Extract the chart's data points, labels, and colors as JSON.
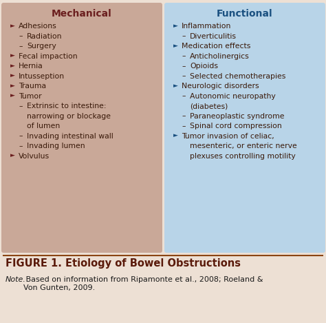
{
  "bg_color": "#ede0d4",
  "left_panel_color": "#c9a898",
  "right_panel_color": "#b8d4e8",
  "left_title": "Mechanical",
  "right_title": "Functional",
  "left_title_color": "#6b1f1f",
  "right_title_color": "#1a5080",
  "text_color": "#3a1a0a",
  "figure_title": "FIGURE 1. Etiology of Bowel Obstructions",
  "figure_note_italic": "Note.",
  "figure_note_regular": " Based on information from Ripamonte et al., 2008; Roeland &\nVon Gunten, 2009.",
  "bullet": "►",
  "dash": "–",
  "left_items": [
    {
      "type": "bullet",
      "text": "Adhesions",
      "extra": []
    },
    {
      "type": "dash",
      "text": "Radiation",
      "extra": []
    },
    {
      "type": "dash",
      "text": "Surgery",
      "extra": []
    },
    {
      "type": "bullet",
      "text": "Fecal impaction",
      "extra": []
    },
    {
      "type": "bullet",
      "text": "Hernia",
      "extra": []
    },
    {
      "type": "bullet",
      "text": "Intusseption",
      "extra": []
    },
    {
      "type": "bullet",
      "text": "Trauma",
      "extra": []
    },
    {
      "type": "bullet",
      "text": "Tumor",
      "extra": []
    },
    {
      "type": "dash",
      "text": "Extrinsic to intestine:",
      "extra": [
        "narrowing or blockage",
        "of lumen"
      ]
    },
    {
      "type": "dash",
      "text": "Invading intestinal wall",
      "extra": []
    },
    {
      "type": "dash",
      "text": "Invading lumen",
      "extra": []
    },
    {
      "type": "bullet",
      "text": "Volvulus",
      "extra": []
    }
  ],
  "right_items": [
    {
      "type": "bullet",
      "text": "Inflammation",
      "extra": []
    },
    {
      "type": "dash",
      "text": "Diverticulitis",
      "extra": []
    },
    {
      "type": "bullet",
      "text": "Medication effects",
      "extra": []
    },
    {
      "type": "dash",
      "text": "Anticholinergics",
      "extra": []
    },
    {
      "type": "dash",
      "text": "Opioids",
      "extra": []
    },
    {
      "type": "dash",
      "text": "Selected chemotherapies",
      "extra": []
    },
    {
      "type": "bullet",
      "text": "Neurologic disorders",
      "extra": []
    },
    {
      "type": "dash",
      "text": "Autonomic neuropathy",
      "extra": [
        "(diabetes)"
      ]
    },
    {
      "type": "dash",
      "text": "Paraneoplastic syndrome",
      "extra": []
    },
    {
      "type": "dash",
      "text": "Spinal cord compression",
      "extra": []
    },
    {
      "type": "bullet",
      "text": "Tumor invasion of celiac,",
      "extra": [
        "mesenteric, or enteric nerve",
        "plexuses controlling motility"
      ]
    }
  ],
  "sep_line_color": "#8B4513",
  "fig_title_color": "#5a1a0a",
  "note_color": "#1a1a1a"
}
